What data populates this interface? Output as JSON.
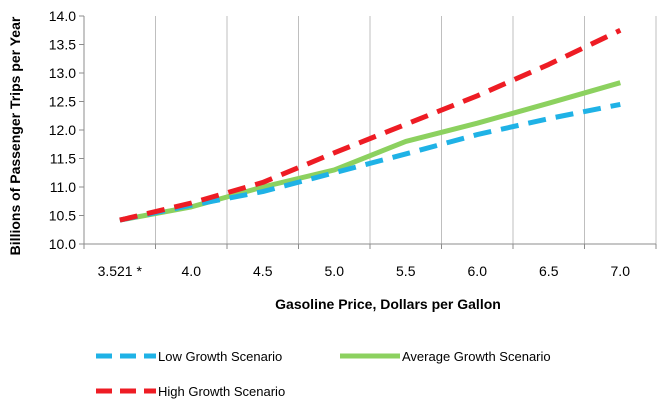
{
  "chart_data": {
    "type": "line",
    "categories": [
      "3.521 *",
      "4.0",
      "4.5",
      "5.0",
      "5.5",
      "6.0",
      "6.5",
      "7.0"
    ],
    "ylabel": "Billions of Passenger Trips per Year",
    "xlabel": "Gasoline Price, Dollars per Gallon",
    "ylim": [
      10.0,
      14.0
    ],
    "yticks": [
      "10.0",
      "10.5",
      "11.0",
      "11.5",
      "12.0",
      "12.5",
      "13.0",
      "13.5",
      "14.0"
    ],
    "grid": "vertical",
    "legend_position": "bottom",
    "series": [
      {
        "name": "Low Growth Scenario",
        "values": [
          10.42,
          10.68,
          10.92,
          11.25,
          11.58,
          11.92,
          12.2,
          12.45
        ],
        "color": "#1FB2E6",
        "style": "dashed"
      },
      {
        "name": "Average Growth Scenario",
        "values": [
          10.42,
          10.65,
          11.0,
          11.3,
          11.8,
          12.12,
          12.47,
          12.83
        ],
        "color": "#8CD15F",
        "style": "solid"
      },
      {
        "name": "High Growth Scenario",
        "values": [
          10.42,
          10.72,
          11.08,
          11.6,
          12.1,
          12.6,
          13.15,
          13.75
        ],
        "color": "#EE1C24",
        "style": "dashed"
      }
    ]
  }
}
